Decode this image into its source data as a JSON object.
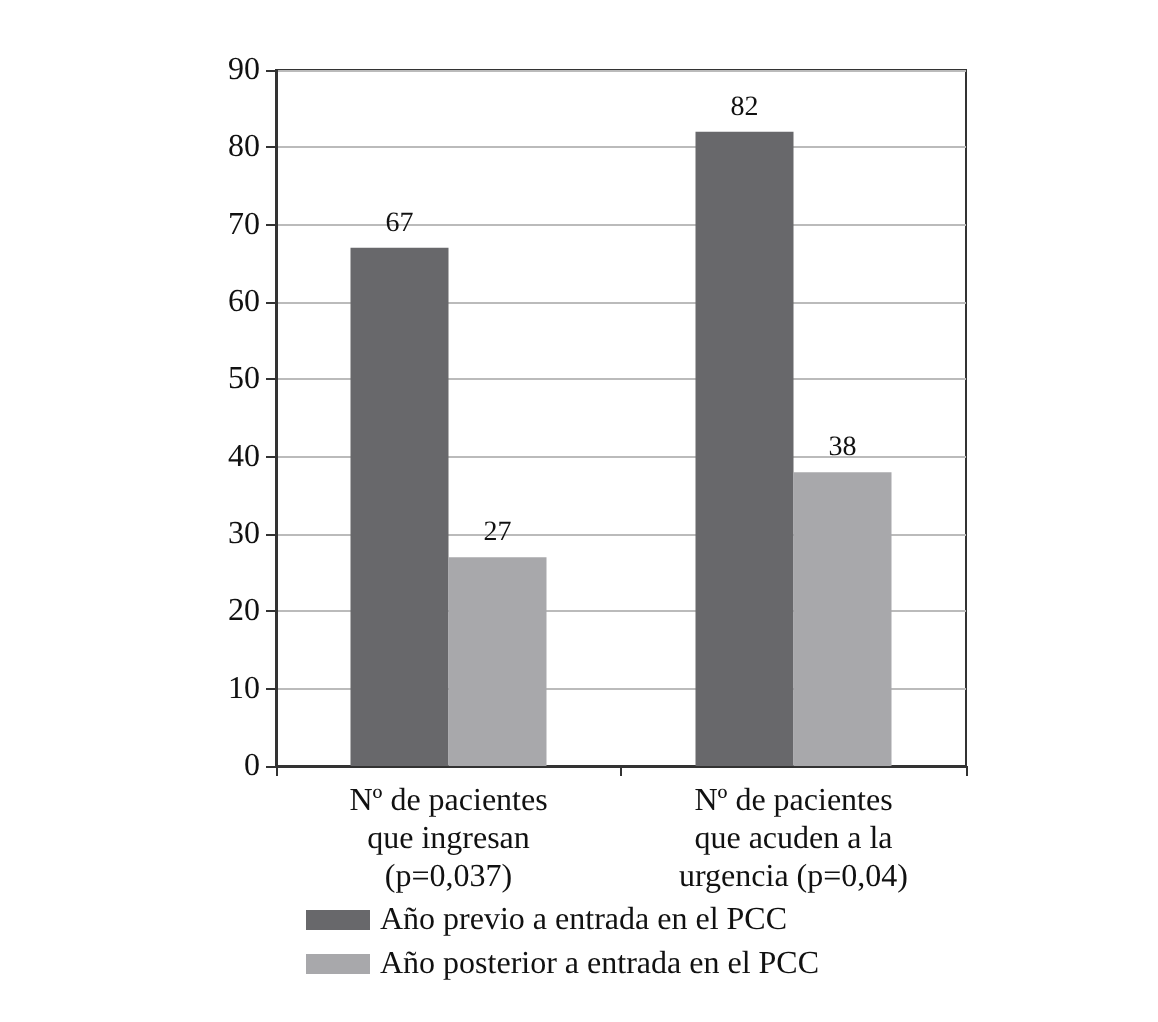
{
  "chart_data": {
    "type": "bar",
    "categories": [
      "Nº de pacientes\nque ingresan\n(p=0,037)",
      "Nº de pacientes\nque acuden a la\nurgencia (p=0,04)"
    ],
    "series": [
      {
        "name": "Año previo a entrada en el PCC",
        "color": "#68686b",
        "values": [
          67,
          82
        ]
      },
      {
        "name": "Año posterior a entrada en el PCC",
        "color": "#a8a8ab",
        "values": [
          27,
          38
        ]
      }
    ],
    "ylim": [
      0,
      90
    ],
    "yticks": [
      0,
      10,
      20,
      30,
      40,
      50,
      60,
      70,
      80,
      90
    ],
    "grid": "y",
    "legend": "bottom left",
    "data_labels": true
  }
}
